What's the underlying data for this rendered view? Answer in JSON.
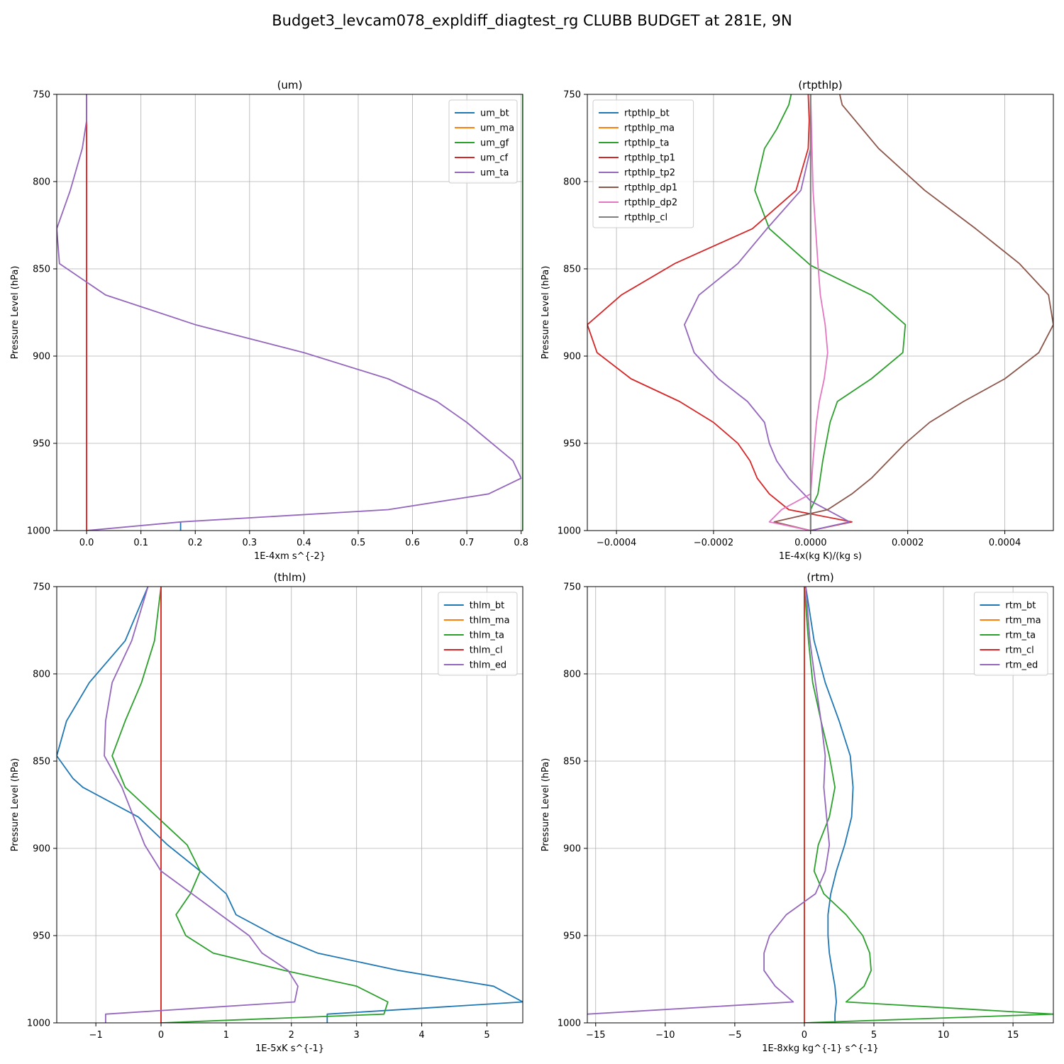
{
  "figure": {
    "title": "Budget3_levcam078_expldiff_diagtest_rg CLUBB BUDGET at 281E, 9N"
  },
  "chart_data": [
    {
      "type": "line",
      "title": "(um)",
      "xlabel": "1E-4xm s^{-2}",
      "ylabel": "Pressure Level (hPa)",
      "xlim": [
        -0.055,
        0.803
      ],
      "ylim": [
        1000,
        750
      ],
      "y_inverted": true,
      "grid": true,
      "legend_position": "upper right",
      "xticks": [
        0.0,
        0.1,
        0.2,
        0.3,
        0.4,
        0.5,
        0.6,
        0.7,
        0.8
      ],
      "xtick_labels": [
        "0.0",
        "0.1",
        "0.2",
        "0.3",
        "0.4",
        "0.5",
        "0.6",
        "0.7",
        "0.8"
      ],
      "yticks": [
        750,
        800,
        850,
        900,
        950,
        1000
      ],
      "ytick_labels": [
        "750",
        "800",
        "850",
        "900",
        "950",
        "1000"
      ],
      "series": [
        {
          "name": "um_bt",
          "color": "#1f77b4",
          "x": [
            0.173,
            0.173
          ],
          "y": [
            995,
            1000
          ]
        },
        {
          "name": "um_ma",
          "color": "#ff7f0e",
          "x": [
            0,
            0
          ],
          "y": [
            750,
            1000
          ]
        },
        {
          "name": "um_gf",
          "color": "#2ca02c",
          "x": [
            0.803,
            0.803
          ],
          "y": [
            750,
            1000
          ]
        },
        {
          "name": "um_cf",
          "color": "#d62728",
          "x": [
            0,
            0
          ],
          "y": [
            750,
            1000
          ]
        },
        {
          "name": "um_ta",
          "color": "#9467bd",
          "x": [
            0.0,
            0.0,
            -0.008,
            -0.03,
            -0.055,
            -0.05,
            0.035,
            0.2,
            0.4,
            0.555,
            0.645,
            0.7,
            0.785,
            0.8,
            0.74,
            0.555,
            0.175,
            0.0
          ],
          "y": [
            750,
            765,
            781,
            805,
            827,
            847,
            865,
            882,
            898,
            913,
            926,
            938,
            960,
            970,
            979,
            988,
            995,
            1000
          ]
        }
      ]
    },
    {
      "type": "line",
      "title": "(rtpthlp)",
      "xlabel": "1E-4x(kg K)/(kg s)",
      "ylabel": "Pressure Level (hPa)",
      "xlim": [
        -0.00046,
        0.0005
      ],
      "ylim": [
        1000,
        750
      ],
      "y_inverted": true,
      "grid": true,
      "legend_position": "upper left",
      "xticks": [
        -0.0004,
        -0.0002,
        0.0,
        0.0002,
        0.0004
      ],
      "xtick_labels": [
        "−0.0004",
        "−0.0002",
        "0.0000",
        "0.0002",
        "0.0004"
      ],
      "yticks": [
        750,
        800,
        850,
        900,
        950,
        1000
      ],
      "ytick_labels": [
        "750",
        "800",
        "850",
        "900",
        "950",
        "1000"
      ],
      "series": [
        {
          "name": "rtpthlp_bt",
          "color": "#1f77b4",
          "x": [
            0.0,
            0.0
          ],
          "y": [
            750,
            1000
          ]
        },
        {
          "name": "rtpthlp_ma",
          "color": "#ff7f0e",
          "x": [
            0.0,
            0.0
          ],
          "y": [
            750,
            1000
          ]
        },
        {
          "name": "rtpthlp_ta",
          "color": "#2ca02c",
          "x": [
            -4e-05,
            -4.5e-05,
            -7e-05,
            -9.5e-05,
            -0.000115,
            -8.5e-05,
            0.0,
            0.000125,
            0.000195,
            0.00019,
            0.000125,
            5.5e-05,
            4e-05,
            2.5e-05,
            1.5e-05,
            0.0,
            0.0
          ],
          "y": [
            750,
            756,
            770,
            781,
            805,
            827,
            848,
            865,
            882,
            898,
            913,
            926,
            938,
            960,
            979,
            988,
            1000
          ]
        },
        {
          "name": "rtpthlp_tp1",
          "color": "#d62728",
          "x": [
            -5e-06,
            -3e-06,
            -5e-06,
            -3e-05,
            -0.00012,
            -0.00028,
            -0.00039,
            -0.00046,
            -0.00044,
            -0.00037,
            -0.00027,
            -0.0002,
            -0.00015,
            -0.000125,
            -0.00011,
            -8.5e-05,
            -4.5e-05,
            8.5e-05,
            -5e-07
          ],
          "y": [
            750,
            765,
            781,
            805,
            827,
            847,
            865,
            882,
            898,
            913,
            926,
            938,
            950,
            960,
            970,
            979,
            988,
            995,
            1000
          ]
        },
        {
          "name": "rtpthlp_tp2",
          "color": "#9467bd",
          "x": [
            0.0,
            0.0,
            0.0,
            -2e-05,
            -9e-05,
            -0.00015,
            -0.00023,
            -0.00026,
            -0.00024,
            -0.00019,
            -0.00013,
            -9.5e-05,
            -8.5e-05,
            -7e-05,
            -4.5e-05,
            0.0,
            8e-05,
            0.0
          ],
          "y": [
            750,
            765,
            781,
            805,
            827,
            847,
            865,
            882,
            898,
            913,
            926,
            938,
            950,
            960,
            970,
            983,
            995,
            1000
          ]
        },
        {
          "name": "rtpthlp_dp1",
          "color": "#8c564b",
          "x": [
            6e-05,
            6.5e-05,
            0.00014,
            0.000235,
            0.00034,
            0.00043,
            0.00049,
            0.0005,
            0.00047,
            0.0004,
            0.000315,
            0.000245,
            0.000195,
            0.00016,
            0.000125,
            8.5e-05,
            3.5e-05,
            -7.5e-05,
            0.0
          ],
          "y": [
            750,
            756,
            781,
            805,
            827,
            847,
            865,
            882,
            898,
            913,
            926,
            938,
            950,
            960,
            970,
            979,
            988,
            995,
            1000
          ]
        },
        {
          "name": "rtpthlp_dp2",
          "color": "#e377c2",
          "x": [
            0.0,
            5e-06,
            1.5e-05,
            2e-05,
            3e-05,
            3.5e-05,
            2.8e-05,
            1.8e-05,
            1.2e-05,
            5e-06,
            0.0,
            -6e-05,
            -8.5e-05,
            0.0
          ],
          "y": [
            750,
            805,
            847,
            865,
            882,
            898,
            913,
            926,
            938,
            960,
            979,
            988,
            995,
            1000
          ]
        },
        {
          "name": "rtpthlp_cl",
          "color": "#7f7f7f",
          "x": [
            0.0,
            0.0
          ],
          "y": [
            750,
            1000
          ]
        }
      ]
    },
    {
      "type": "line",
      "title": "(thlm)",
      "xlabel": "1E-5xK s^{-1}",
      "ylabel": "Pressure Level (hPa)",
      "xlim": [
        -1.6,
        5.55
      ],
      "ylim": [
        1000,
        750
      ],
      "y_inverted": true,
      "grid": true,
      "legend_position": "upper right",
      "xticks": [
        -1,
        0,
        1,
        2,
        3,
        4,
        5
      ],
      "xtick_labels": [
        "−1",
        "0",
        "1",
        "2",
        "3",
        "4",
        "5"
      ],
      "yticks": [
        750,
        800,
        850,
        900,
        950,
        1000
      ],
      "ytick_labels": [
        "750",
        "800",
        "850",
        "900",
        "950",
        "1000"
      ],
      "series": [
        {
          "name": "thlm_bt",
          "color": "#1f77b4",
          "x": [
            -0.2,
            -0.55,
            -1.1,
            -1.45,
            -1.6,
            -1.35,
            -1.2,
            -0.35,
            0.1,
            0.6,
            1.0,
            1.15,
            1.75,
            2.4,
            3.65,
            5.1,
            5.55,
            2.55,
            2.55
          ],
          "y": [
            750,
            781,
            805,
            827,
            847,
            860,
            865,
            882,
            898,
            913,
            926,
            938,
            950,
            960,
            970,
            979,
            988,
            995,
            1000
          ]
        },
        {
          "name": "thlm_ma",
          "color": "#ff7f0e",
          "x": [
            0,
            0
          ],
          "y": [
            750,
            1000
          ]
        },
        {
          "name": "thlm_ta",
          "color": "#2ca02c",
          "x": [
            0.0,
            -0.1,
            -0.3,
            -0.55,
            -0.75,
            -0.55,
            0.4,
            0.6,
            0.45,
            0.23,
            0.38,
            0.8,
            1.9,
            3.0,
            3.48,
            3.42,
            0.0
          ],
          "y": [
            750,
            781,
            805,
            827,
            847,
            865,
            898,
            913,
            926,
            938,
            950,
            960,
            970,
            979,
            988,
            995,
            1000
          ]
        },
        {
          "name": "thlm_cl",
          "color": "#d62728",
          "x": [
            0,
            0
          ],
          "y": [
            750,
            1000
          ]
        },
        {
          "name": "thlm_ed",
          "color": "#9467bd",
          "x": [
            -0.2,
            -0.45,
            -0.75,
            -0.85,
            -0.87,
            -0.6,
            -0.25,
            0.0,
            1.35,
            1.55,
            1.95,
            2.1,
            2.05,
            -0.85,
            -0.85
          ],
          "y": [
            750,
            781,
            805,
            827,
            847,
            865,
            898,
            913,
            950,
            960,
            970,
            979,
            988,
            995,
            1000
          ]
        }
      ]
    },
    {
      "type": "line",
      "title": "(rtm)",
      "xlabel": "1E-8xkg kg^{-1} s^{-1}",
      "ylabel": "Pressure Level (hPa)",
      "xlim": [
        -15.6,
        17.9
      ],
      "ylim": [
        1000,
        750
      ],
      "y_inverted": true,
      "grid": true,
      "legend_position": "upper right",
      "xticks": [
        -15,
        -10,
        -5,
        0,
        5,
        10,
        15
      ],
      "xtick_labels": [
        "−15",
        "−10",
        "−5",
        "0",
        "5",
        "10",
        "15"
      ],
      "yticks": [
        750,
        800,
        850,
        900,
        950,
        1000
      ],
      "ytick_labels": [
        "750",
        "800",
        "850",
        "900",
        "950",
        "1000"
      ],
      "series": [
        {
          "name": "rtm_bt",
          "color": "#1f77b4",
          "x": [
            0.1,
            0.7,
            1.5,
            2.5,
            3.3,
            3.5,
            3.4,
            2.9,
            2.3,
            1.9,
            1.7,
            1.7,
            1.8,
            2.0,
            2.2,
            2.3,
            2.2,
            2.2
          ],
          "y": [
            750,
            781,
            805,
            827,
            847,
            865,
            882,
            898,
            913,
            926,
            938,
            950,
            960,
            970,
            979,
            988,
            995,
            1000
          ]
        },
        {
          "name": "rtm_ma",
          "color": "#ff7f0e",
          "x": [
            0,
            0
          ],
          "y": [
            750,
            1000
          ]
        },
        {
          "name": "rtm_ta",
          "color": "#2ca02c",
          "x": [
            0.0,
            0.3,
            0.6,
            1.2,
            1.8,
            2.2,
            1.8,
            1.0,
            0.7,
            1.4,
            3.0,
            4.2,
            4.7,
            4.8,
            4.3,
            3.0,
            17.9,
            0.0
          ],
          "y": [
            750,
            781,
            805,
            827,
            847,
            865,
            882,
            898,
            913,
            926,
            938,
            950,
            960,
            970,
            979,
            988,
            995,
            1000
          ]
        },
        {
          "name": "rtm_cl",
          "color": "#d62728",
          "x": [
            0,
            0
          ],
          "y": [
            750,
            1000
          ]
        },
        {
          "name": "rtm_ed",
          "color": "#9467bd",
          "x": [
            0.1,
            0.4,
            0.8,
            1.2,
            1.5,
            1.4,
            1.6,
            1.8,
            1.5,
            0.8,
            -1.3,
            -2.5,
            -2.9,
            -2.9,
            -2.1,
            -0.8,
            -15.6
          ],
          "y": [
            750,
            781,
            805,
            827,
            847,
            865,
            882,
            898,
            913,
            926,
            938,
            950,
            960,
            970,
            979,
            988,
            995
          ]
        }
      ]
    }
  ]
}
